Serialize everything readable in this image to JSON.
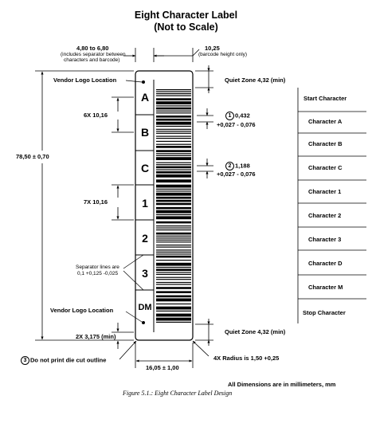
{
  "title": {
    "line1": "Eight Character Label",
    "line2": "(Not to Scale)"
  },
  "top_dims": {
    "separator_width": "4,80 to 6,80",
    "separator_note_1": "(includes separator between",
    "separator_note_2": "characters and barcode)",
    "barcode_height": "10,25",
    "barcode_height_note": "(barcode height only)"
  },
  "left_labels": {
    "vendor_logo_top": "Vendor Logo Location",
    "six_x": "6X 10,16",
    "total_height": "78,50 ± 0,70",
    "seven_x": "7X 10,16",
    "separator_lines_1": "Separator lines are",
    "separator_lines_2": "0,1 +0,125 -0,025",
    "vendor_logo_bottom": "Vendor Logo Location",
    "two_x": "2X 3,175 (min)",
    "note3_number": "3",
    "note3_text": "Do not print die cut outline"
  },
  "segments": [
    "A",
    "B",
    "C",
    "1",
    "2",
    "3",
    "DM"
  ],
  "right_labels": {
    "quiet_zone_top": "Quiet Zone 4,32 (min)",
    "note1_number": "1",
    "note1_value": "0,432",
    "note1_tol": "+0,027 - 0,076",
    "note2_number": "2",
    "note2_value": "1,188",
    "note2_tol": "+0,027 - 0,076",
    "quiet_zone_bottom": "Quiet Zone 4,32 (min)",
    "radius": "4X Radius is 1,50 +0,25"
  },
  "character_list": [
    "Start Character",
    "Character A",
    "Character B",
    "Character C",
    "Character 1",
    "Character 2",
    "Character 3",
    "Character D",
    "Character M",
    "Stop Character"
  ],
  "bottom": {
    "width_dim": "16,05 ± 1,00",
    "units_note": "All Dimensions are in millimeters, mm",
    "caption": "Figure 5.1.:  Eight Character Label Design"
  }
}
